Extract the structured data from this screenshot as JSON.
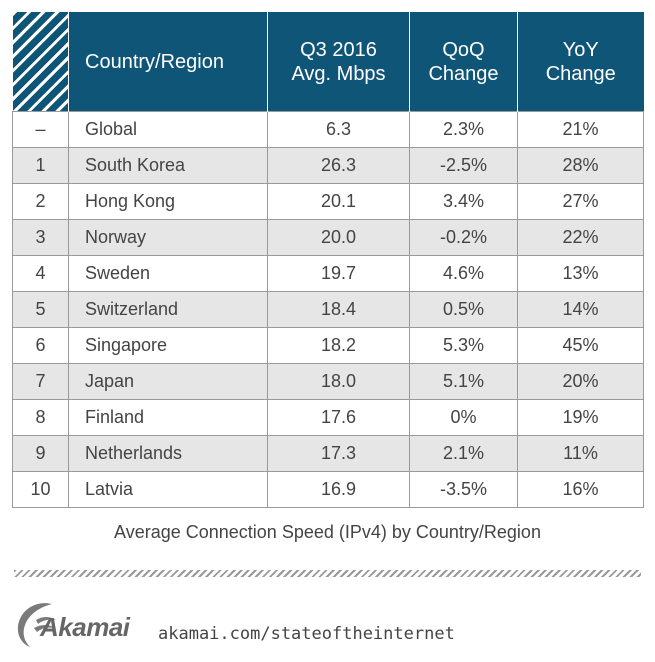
{
  "chart_data": {
    "type": "table",
    "title": "Average Connection Speed (IPv4) by Country/Region",
    "columns": [
      "",
      "Country/Region",
      "Q3 2016\nAvg. Mbps",
      "QoQ\nChange",
      "YoY\nChange"
    ],
    "header": {
      "country": "Country/Region",
      "speed_line1": "Q3 2016",
      "speed_line2": "Avg. Mbps",
      "qoq_line1": "QoQ",
      "qoq_line2": "Change",
      "yoy_line1": "YoY",
      "yoy_line2": "Change"
    },
    "rows": [
      {
        "rank": "–",
        "country": "Global",
        "speed": "6.3",
        "qoq": "2.3%",
        "yoy": "21%"
      },
      {
        "rank": "1",
        "country": "South Korea",
        "speed": "26.3",
        "qoq": "-2.5%",
        "yoy": "28%"
      },
      {
        "rank": "2",
        "country": "Hong Kong",
        "speed": "20.1",
        "qoq": "3.4%",
        "yoy": "27%"
      },
      {
        "rank": "3",
        "country": "Norway",
        "speed": "20.0",
        "qoq": "-0.2%",
        "yoy": "22%"
      },
      {
        "rank": "4",
        "country": "Sweden",
        "speed": "19.7",
        "qoq": "4.6%",
        "yoy": "13%"
      },
      {
        "rank": "5",
        "country": "Switzerland",
        "speed": "18.4",
        "qoq": "0.5%",
        "yoy": "14%"
      },
      {
        "rank": "6",
        "country": "Singapore",
        "speed": "18.2",
        "qoq": "5.3%",
        "yoy": "45%"
      },
      {
        "rank": "7",
        "country": "Japan",
        "speed": "18.0",
        "qoq": "5.1%",
        "yoy": "20%"
      },
      {
        "rank": "8",
        "country": "Finland",
        "speed": "17.6",
        "qoq": "0%",
        "yoy": "19%"
      },
      {
        "rank": "9",
        "country": "Netherlands",
        "speed": "17.3",
        "qoq": "2.1%",
        "yoy": "11%"
      },
      {
        "rank": "10",
        "country": "Latvia",
        "speed": "16.9",
        "qoq": "-3.5%",
        "yoy": "16%"
      }
    ]
  },
  "caption": "Average Connection Speed (IPv4) by Country/Region",
  "brand": {
    "logo_text": "Akamai",
    "url": "akamai.com/stateoftheinternet"
  },
  "colors": {
    "header_bg": "#0f5577",
    "stripe_bg": "#e6e6e7",
    "text": "#444444"
  },
  "icons": {
    "logo": "akamai-wave-logo",
    "hatch": "diagonal-hatch-pattern"
  }
}
